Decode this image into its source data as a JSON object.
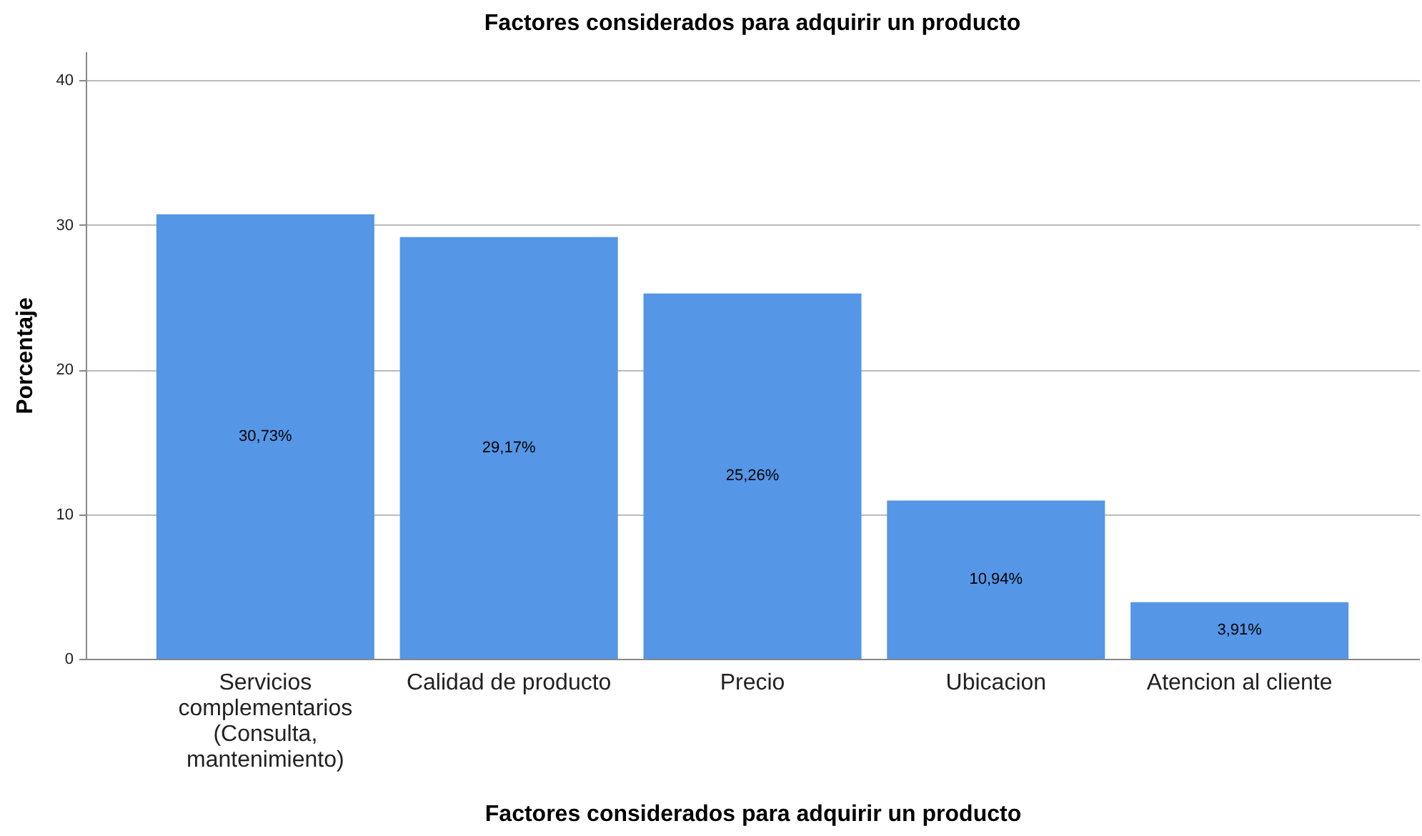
{
  "chart_data": {
    "type": "bar",
    "title": "Factores considerados para adquirir un producto",
    "xlabel": "Factores considerados para adquirir un producto",
    "ylabel": "Porcentaje",
    "categories": [
      "Servicios complementarios (Consulta, mantenimiento)",
      "Calidad de producto",
      "Precio",
      "Ubicacion",
      "Atencion al cliente"
    ],
    "values": [
      30.73,
      29.17,
      25.26,
      10.94,
      3.91
    ],
    "value_labels": [
      "30,73%",
      "29,17%",
      "25,26%",
      "10,94%",
      "3,91%"
    ],
    "color": "#5596e6",
    "ylim": [
      0,
      42
    ],
    "yticks": [
      0,
      10,
      20,
      30,
      40
    ],
    "grid": "y"
  }
}
